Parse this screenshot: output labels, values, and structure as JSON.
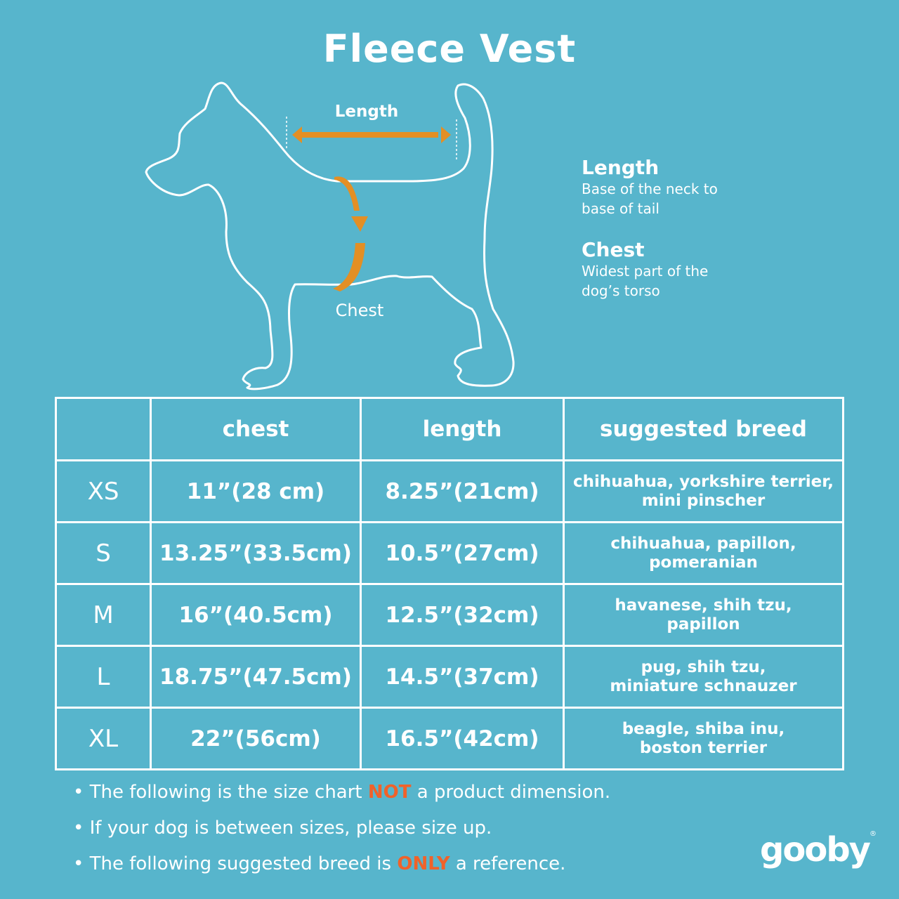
{
  "title": "Fleece Vest",
  "diagram": {
    "length_label": "Length",
    "chest_label": "Chest",
    "arrow_color": "#e38f24"
  },
  "legend": [
    {
      "heading": "Length",
      "line1": "Base of the neck to",
      "line2": "base of tail"
    },
    {
      "heading": "Chest",
      "line1": "Widest part of the",
      "line2": "dog’s torso"
    }
  ],
  "table": {
    "headers": [
      "",
      "chest",
      "length",
      "suggested breed"
    ],
    "rows": [
      {
        "size": "XS",
        "chest": "11”(28 cm)",
        "length": "8.25”(21cm)",
        "breed1": "chihuahua, yorkshire terrier,",
        "breed2": "mini pinscher"
      },
      {
        "size": "S",
        "chest": "13.25”(33.5cm)",
        "length": "10.5”(27cm)",
        "breed1": "chihuahua, papillon,",
        "breed2": "pomeranian"
      },
      {
        "size": "M",
        "chest": "16”(40.5cm)",
        "length": "12.5”(32cm)",
        "breed1": "havanese, shih tzu,",
        "breed2": "papillon"
      },
      {
        "size": "L",
        "chest": "18.75”(47.5cm)",
        "length": "14.5”(37cm)",
        "breed1": "pug, shih tzu,",
        "breed2": "miniature schnauzer"
      },
      {
        "size": "XL",
        "chest": "22”(56cm)",
        "length": "16.5”(42cm)",
        "breed1": "beagle, shiba inu,",
        "breed2": "boston terrier"
      }
    ]
  },
  "notes": [
    {
      "before": "The following is  the size chart ",
      "highlight": "NOT",
      "after": " a product dimension."
    },
    {
      "before": "If your dog is between sizes, please size up.",
      "highlight": "",
      "after": ""
    },
    {
      "before": "The following suggested breed is ",
      "highlight": "ONLY",
      "after": " a reference."
    }
  ],
  "highlight_color": "#f0622a",
  "background_color": "#57b5cc",
  "logo": {
    "text": "gooby",
    "mark": "®"
  }
}
